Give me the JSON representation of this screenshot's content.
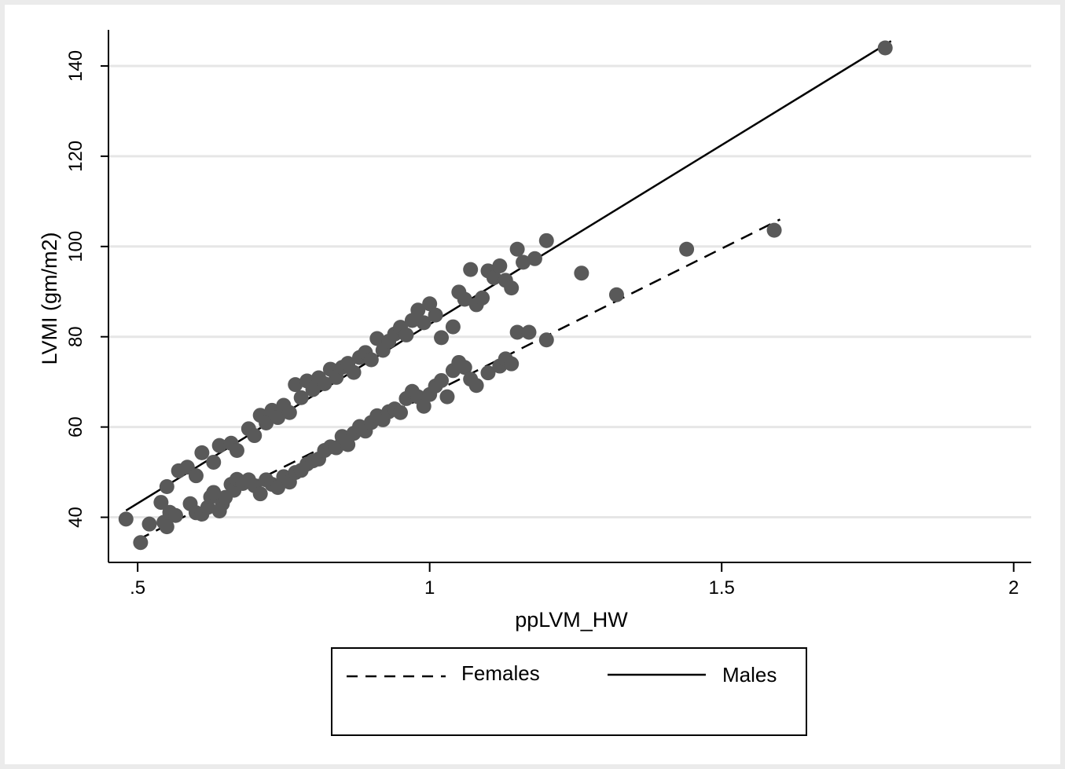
{
  "chart_data": {
    "type": "scatter",
    "xlabel": "ppLVM_HW",
    "ylabel": "LVMI (gm/m2)",
    "xlim": [
      0.45,
      2.03
    ],
    "ylim": [
      30,
      148
    ],
    "xticks": [
      0.5,
      1,
      1.5,
      2
    ],
    "xtick_labels": [
      ".5",
      "1",
      "1.5",
      "2"
    ],
    "yticks": [
      40,
      60,
      80,
      100,
      120,
      140
    ],
    "ytick_labels": [
      "40",
      "60",
      "80",
      "100",
      "120",
      "140"
    ],
    "grid": "horizontal",
    "legend_position": "bottom",
    "colors": {
      "points": "#595959",
      "lines": "#000000",
      "grid": "#e6e6e6",
      "background": "#ebebeb"
    },
    "points": [
      [
        0.48,
        39.6
      ],
      [
        0.505,
        34.4
      ],
      [
        0.52,
        38.5
      ],
      [
        0.54,
        43.3
      ],
      [
        0.545,
        38.9
      ],
      [
        0.55,
        37.9
      ],
      [
        0.555,
        41.1
      ],
      [
        0.565,
        40.4
      ],
      [
        0.59,
        43.0
      ],
      [
        0.6,
        41.0
      ],
      [
        0.61,
        40.7
      ],
      [
        0.62,
        42.2
      ],
      [
        0.625,
        44.5
      ],
      [
        0.63,
        45.5
      ],
      [
        0.64,
        41.4
      ],
      [
        0.645,
        43.0
      ],
      [
        0.65,
        44.4
      ],
      [
        0.66,
        47.3
      ],
      [
        0.665,
        46.0
      ],
      [
        0.67,
        48.4
      ],
      [
        0.68,
        47.5
      ],
      [
        0.69,
        48.3
      ],
      [
        0.7,
        47.0
      ],
      [
        0.71,
        45.2
      ],
      [
        0.72,
        48.3
      ],
      [
        0.73,
        47.3
      ],
      [
        0.74,
        46.6
      ],
      [
        0.75,
        49.0
      ],
      [
        0.76,
        47.8
      ],
      [
        0.77,
        49.9
      ],
      [
        0.78,
        50.4
      ],
      [
        0.79,
        51.8
      ],
      [
        0.8,
        52.5
      ],
      [
        0.81,
        52.9
      ],
      [
        0.82,
        54.8
      ],
      [
        0.83,
        55.6
      ],
      [
        0.84,
        55.4
      ],
      [
        0.85,
        57.9
      ],
      [
        0.86,
        56.1
      ],
      [
        0.87,
        58.6
      ],
      [
        0.88,
        60.1
      ],
      [
        0.89,
        59.1
      ],
      [
        0.9,
        61.0
      ],
      [
        0.91,
        62.5
      ],
      [
        0.92,
        61.6
      ],
      [
        0.93,
        63.4
      ],
      [
        0.94,
        64.0
      ],
      [
        0.95,
        63.2
      ],
      [
        0.96,
        66.3
      ],
      [
        0.97,
        67.9
      ],
      [
        0.98,
        66.7
      ],
      [
        0.99,
        64.6
      ],
      [
        1.0,
        67.2
      ],
      [
        1.01,
        69.1
      ],
      [
        1.02,
        70.3
      ],
      [
        1.03,
        66.7
      ],
      [
        1.04,
        72.5
      ],
      [
        1.05,
        74.3
      ],
      [
        1.06,
        73.2
      ],
      [
        1.07,
        70.6
      ],
      [
        1.08,
        69.2
      ],
      [
        1.1,
        72.0
      ],
      [
        1.12,
        73.5
      ],
      [
        1.13,
        75.1
      ],
      [
        1.14,
        74.0
      ],
      [
        1.15,
        81.0
      ],
      [
        1.17,
        81.0
      ],
      [
        1.2,
        79.3
      ],
      [
        1.32,
        89.3
      ],
      [
        1.44,
        99.4
      ],
      [
        1.59,
        103.6
      ],
      [
        0.55,
        46.8
      ],
      [
        0.57,
        50.3
      ],
      [
        0.585,
        51.1
      ],
      [
        0.6,
        49.2
      ],
      [
        0.61,
        54.3
      ],
      [
        0.63,
        52.2
      ],
      [
        0.64,
        55.9
      ],
      [
        0.66,
        56.4
      ],
      [
        0.67,
        54.8
      ],
      [
        0.69,
        59.6
      ],
      [
        0.7,
        58.1
      ],
      [
        0.71,
        62.6
      ],
      [
        0.72,
        60.9
      ],
      [
        0.73,
        63.7
      ],
      [
        0.74,
        62.1
      ],
      [
        0.75,
        64.8
      ],
      [
        0.76,
        63.2
      ],
      [
        0.77,
        69.4
      ],
      [
        0.78,
        66.5
      ],
      [
        0.79,
        70.2
      ],
      [
        0.8,
        68.3
      ],
      [
        0.81,
        70.9
      ],
      [
        0.82,
        69.6
      ],
      [
        0.83,
        72.8
      ],
      [
        0.84,
        71.0
      ],
      [
        0.85,
        73.2
      ],
      [
        0.86,
        74.1
      ],
      [
        0.87,
        72.1
      ],
      [
        0.88,
        75.4
      ],
      [
        0.89,
        76.5
      ],
      [
        0.9,
        74.9
      ],
      [
        0.91,
        79.6
      ],
      [
        0.92,
        77.0
      ],
      [
        0.93,
        79.0
      ],
      [
        0.94,
        80.6
      ],
      [
        0.95,
        82.1
      ],
      [
        0.96,
        80.4
      ],
      [
        0.97,
        83.6
      ],
      [
        0.98,
        85.9
      ],
      [
        0.99,
        83.1
      ],
      [
        1.0,
        87.3
      ],
      [
        1.01,
        84.8
      ],
      [
        1.02,
        79.8
      ],
      [
        1.04,
        82.2
      ],
      [
        1.05,
        89.9
      ],
      [
        1.06,
        88.3
      ],
      [
        1.07,
        94.9
      ],
      [
        1.08,
        87.1
      ],
      [
        1.09,
        88.6
      ],
      [
        1.1,
        94.6
      ],
      [
        1.11,
        93.1
      ],
      [
        1.12,
        95.7
      ],
      [
        1.13,
        92.5
      ],
      [
        1.14,
        90.8
      ],
      [
        1.15,
        99.4
      ],
      [
        1.16,
        96.5
      ],
      [
        1.18,
        97.3
      ],
      [
        1.2,
        101.3
      ],
      [
        1.26,
        94.1
      ],
      [
        1.78,
        144.0
      ]
    ],
    "series": [
      {
        "name": "Females",
        "style": "dashed",
        "line": [
          [
            0.5,
            35.0
          ],
          [
            1.6,
            106.0
          ]
        ]
      },
      {
        "name": "Males",
        "style": "solid",
        "line": [
          [
            0.48,
            41.5
          ],
          [
            1.79,
            145.5
          ]
        ]
      }
    ]
  }
}
